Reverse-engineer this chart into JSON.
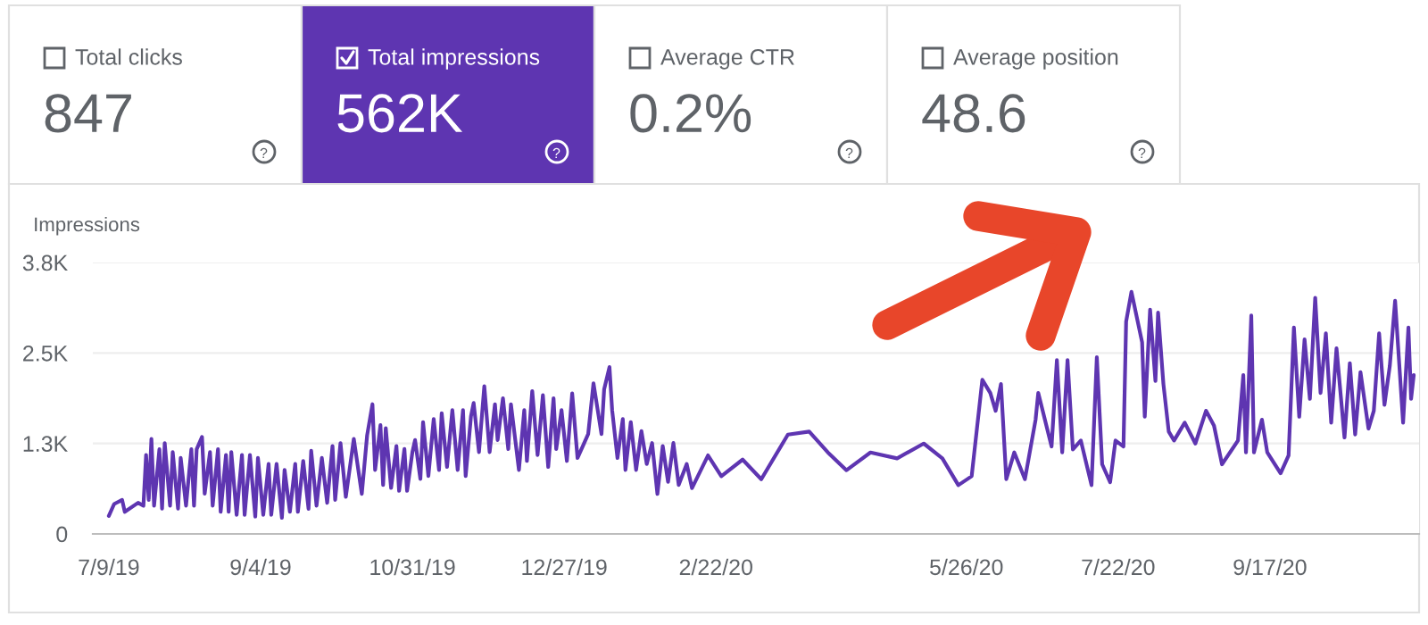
{
  "chart_data": [
    {
      "type": "other",
      "categories": [
        "Total clicks",
        "Total impressions",
        "Average CTR",
        "Average position"
      ],
      "annotations": [
        "847",
        "562K",
        "0.2%",
        "48.6"
      ],
      "colors": [
        "#ffffff",
        "#5e35b1",
        "#ffffff",
        "#ffffff"
      ]
    },
    {
      "type": "line",
      "ylabel": "Impressions",
      "color": "#5e35b1",
      "x": [
        "2019-07-09",
        "2019-07-11",
        "2019-07-14",
        "2019-07-15",
        "2019-07-20",
        "2019-07-22",
        "2019-07-23",
        "2019-07-24",
        "2019-07-25",
        "2019-07-26",
        "2019-07-28",
        "2019-07-29",
        "2019-07-30",
        "2019-08-01",
        "2019-08-02",
        "2019-08-04",
        "2019-08-05",
        "2019-08-07",
        "2019-08-09",
        "2019-08-10",
        "2019-08-11",
        "2019-08-13",
        "2019-08-14",
        "2019-08-16",
        "2019-08-17",
        "2019-08-19",
        "2019-08-20",
        "2019-08-22",
        "2019-08-23",
        "2019-08-24",
        "2019-08-26",
        "2019-08-28",
        "2019-08-29",
        "2019-08-31",
        "2019-09-02",
        "2019-09-03",
        "2019-09-05",
        "2019-09-07",
        "2019-09-08",
        "2019-09-10",
        "2019-09-12",
        "2019-09-13",
        "2019-09-15",
        "2019-09-17",
        "2019-09-18",
        "2019-09-20",
        "2019-09-22",
        "2019-09-23",
        "2019-09-25",
        "2019-09-27",
        "2019-09-29",
        "2019-10-01",
        "2019-10-02",
        "2019-10-04",
        "2019-10-06",
        "2019-10-09",
        "2019-10-12",
        "2019-10-14",
        "2019-10-16",
        "2019-10-17",
        "2019-10-19",
        "2019-10-20",
        "2019-10-21",
        "2019-10-23",
        "2019-10-25",
        "2019-10-26",
        "2019-10-28",
        "2019-10-29",
        "2019-10-31",
        "2019-11-01",
        "2019-11-03",
        "2019-11-04",
        "2019-11-06",
        "2019-11-08",
        "2019-11-10",
        "2019-11-11",
        "2019-11-13",
        "2019-11-15",
        "2019-11-17",
        "2019-11-19",
        "2019-11-20",
        "2019-11-22",
        "2019-11-23",
        "2019-11-25",
        "2019-11-27",
        "2019-11-29",
        "2019-12-01",
        "2019-12-02",
        "2019-12-04",
        "2019-12-06",
        "2019-12-07",
        "2019-12-10",
        "2019-12-12",
        "2019-12-13",
        "2019-12-15",
        "2019-12-17",
        "2019-12-19",
        "2019-12-21",
        "2019-12-23",
        "2019-12-24",
        "2019-12-26",
        "2019-12-28",
        "2019-12-30",
        "2020-01-01",
        "2020-01-03",
        "2020-01-05",
        "2020-01-07",
        "2020-01-10",
        "2020-01-11",
        "2020-01-13",
        "2020-01-14",
        "2020-01-16",
        "2020-01-18",
        "2020-01-19",
        "2020-01-21",
        "2020-01-23",
        "2020-01-25",
        "2020-01-27",
        "2020-01-29",
        "2020-01-31",
        "2020-02-02",
        "2020-02-04",
        "2020-02-06",
        "2020-02-08",
        "2020-02-11",
        "2020-02-13",
        "2020-02-19",
        "2020-02-24",
        "2020-03-03",
        "2020-03-10",
        "2020-03-20",
        "2020-03-28",
        "2020-04-04",
        "2020-04-11",
        "2020-04-20",
        "2020-04-30",
        "2020-05-10",
        "2020-05-17",
        "2020-05-23",
        "2020-05-28",
        "2020-06-01",
        "2020-06-04",
        "2020-06-06",
        "2020-06-08",
        "2020-06-10",
        "2020-06-13",
        "2020-06-17",
        "2020-06-21",
        "2020-06-22",
        "2020-06-27",
        "2020-06-29",
        "2020-07-01",
        "2020-07-03",
        "2020-07-05",
        "2020-07-08",
        "2020-07-12",
        "2020-07-14",
        "2020-07-16",
        "2020-07-19",
        "2020-07-21",
        "2020-07-24",
        "2020-07-25",
        "2020-07-27",
        "2020-07-31",
        "2020-08-01",
        "2020-08-03",
        "2020-08-05",
        "2020-08-06",
        "2020-08-08",
        "2020-08-10",
        "2020-08-12",
        "2020-08-16",
        "2020-08-20",
        "2020-08-24",
        "2020-08-27",
        "2020-08-30",
        "2020-09-02",
        "2020-09-05",
        "2020-09-07",
        "2020-09-08",
        "2020-09-10",
        "2020-09-11",
        "2020-09-14",
        "2020-09-16",
        "2020-09-21",
        "2020-09-24",
        "2020-09-26",
        "2020-09-28",
        "2020-09-30",
        "2020-10-02",
        "2020-10-04",
        "2020-10-06",
        "2020-10-08",
        "2020-10-10",
        "2020-10-12",
        "2020-10-15",
        "2020-10-17",
        "2020-10-19",
        "2020-10-21",
        "2020-10-24",
        "2020-10-26",
        "2020-10-28",
        "2020-10-30",
        "2020-11-01",
        "2020-11-03",
        "2020-11-06",
        "2020-11-08",
        "2020-11-09",
        "2020-11-10"
      ],
      "values": [
        248,
        413,
        470,
        305,
        430,
        390,
        1090,
        470,
        1313,
        390,
        1170,
        350,
        1255,
        390,
        1130,
        350,
        1050,
        390,
        1170,
        390,
        1170,
        1340,
        555,
        1130,
        390,
        1170,
        305,
        1090,
        305,
        1130,
        264,
        1090,
        264,
        1090,
        240,
        1050,
        264,
        966,
        264,
        966,
        223,
        884,
        305,
        966,
        305,
        1008,
        347,
        1148,
        390,
        1050,
        430,
        1215,
        470,
        1255,
        512,
        1313,
        553,
        1363,
        1792,
        884,
        1503,
        677,
        1462,
        636,
        1214,
        595,
        1173,
        595,
        1131,
        1297,
        760,
        1545,
        801,
        1586,
        884,
        1668,
        925,
        1710,
        884,
        1710,
        801,
        1627,
        1809,
        1131,
        2040,
        1131,
        1792,
        1297,
        1875,
        1173,
        1792,
        884,
        1710,
        1008,
        1974,
        1090,
        1916,
        925,
        1875,
        1173,
        1710,
        1008,
        1941,
        1049,
        1214,
        1379,
        2082,
        1379,
        1999,
        2305,
        1710,
        1049,
        1586,
        884,
        1545,
        884,
        1421,
        966,
        1256,
        553,
        1214,
        719,
        1256,
        677,
        966,
        633,
        1085,
        797,
        1027,
        756,
        1373,
        1414,
        1126,
        880,
        1126,
        1044,
        1249,
        1044,
        674,
        797,
        2129,
        1948,
        1701,
        2071,
        756,
        1126,
        756,
        1578,
        1948,
        1208,
        2400,
        1126,
        2400,
        1167,
        1290,
        674,
        2441,
        962,
        715,
        1290,
        1208,
        2934,
        3345,
        2647,
        1619,
        3098,
        2113,
        3057,
        2071,
        1414,
        1290,
        1537,
        1249,
        1701,
        1496,
        962,
        1126,
        1290,
        2195,
        1126,
        3017,
        1126,
        1578,
        1126,
        838,
        1085,
        2852,
        1619,
        2688,
        1866,
        3263,
        1948,
        2770,
        1537,
        2565,
        1332,
        2359,
        1373,
        2236,
        1455,
        1701,
        2770,
        1784,
        2318,
        3222,
        1537,
        2852,
        1866,
        2195
      ],
      "xlim": [
        "2019-07-03",
        "2020-11-12"
      ],
      "xticks": [
        {
          "value": "2019-07-09",
          "label": "7/9/19"
        },
        {
          "value": "2019-09-04",
          "label": "9/4/19"
        },
        {
          "value": "2019-10-31",
          "label": "10/31/19"
        },
        {
          "value": "2019-12-27",
          "label": "12/27/19"
        },
        {
          "value": "2020-02-22",
          "label": "2/22/20"
        },
        {
          "value": "2020-05-26",
          "label": "5/26/20"
        },
        {
          "value": "2020-07-22",
          "label": "7/22/20"
        },
        {
          "value": "2020-09-17",
          "label": "9/17/20"
        }
      ],
      "ylim": [
        0,
        3750
      ],
      "yticks": [
        0,
        {
          "value": 1250,
          "label": "1.3K"
        },
        {
          "value": 2500,
          "label": "2.5K"
        },
        {
          "value": 3750,
          "label": "3.8K"
        }
      ],
      "grid": "y",
      "marker": "none",
      "line_style": "solid"
    }
  ]
}
